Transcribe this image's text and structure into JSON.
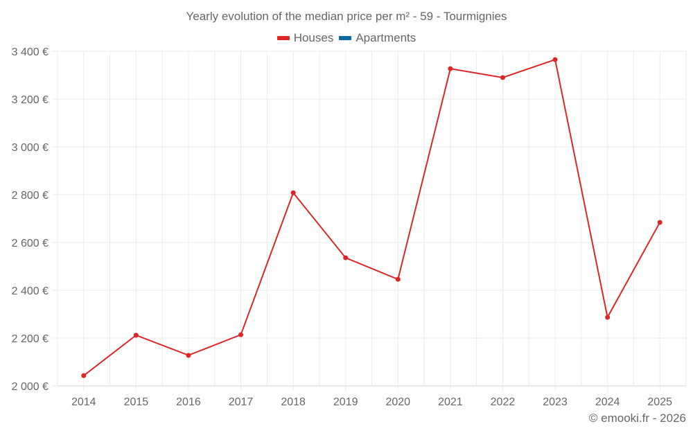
{
  "title": "Yearly evolution of the median price per m² - 59 - Tourmignies",
  "legend": [
    {
      "label": "Houses",
      "color": "#dc2626"
    },
    {
      "label": "Apartments",
      "color": "#0a6aa1"
    }
  ],
  "credit": "© emooki.fr - 2026",
  "chart_data": {
    "type": "line",
    "title": "Yearly evolution of the median price per m² - 59 - Tourmignies",
    "xlabel": "",
    "ylabel": "",
    "categories": [
      "2014",
      "2015",
      "2016",
      "2017",
      "2018",
      "2019",
      "2020",
      "2021",
      "2022",
      "2023",
      "2024",
      "2025"
    ],
    "series": [
      {
        "name": "Houses",
        "color": "#dc2626",
        "values": [
          2043,
          2212,
          2128,
          2214,
          2808,
          2536,
          2446,
          3327,
          3290,
          3365,
          2287,
          2684
        ]
      },
      {
        "name": "Apartments",
        "color": "#0a6aa1",
        "values": []
      }
    ],
    "ylim": [
      2000,
      3400
    ],
    "yticks": [
      2000,
      2200,
      2400,
      2600,
      2800,
      3000,
      3200,
      3400
    ],
    "ytick_labels": [
      "2 000 €",
      "2 200 €",
      "2 400 €",
      "2 600 €",
      "2 800 €",
      "3 000 €",
      "3 200 €",
      "3 400 €"
    ],
    "grid": true,
    "legend_position": "top"
  }
}
